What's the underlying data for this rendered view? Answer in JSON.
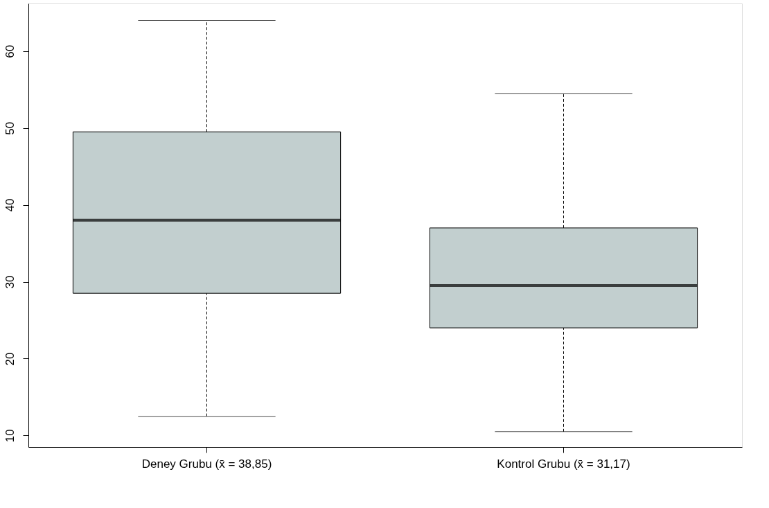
{
  "chart_data": {
    "type": "box",
    "categories": [
      "Deney Grubu (x̄ = 38,85)",
      "Kontrol Grubu (x̄ = 31,17)"
    ],
    "series": [
      {
        "color": "#c2cfcf",
        "boxes": [
          {
            "low": 12.5,
            "q1": 28.5,
            "median": 38,
            "q3": 49.5,
            "high": 64
          },
          {
            "low": 10.5,
            "q1": 24,
            "median": 29.5,
            "q3": 37,
            "high": 54.5
          }
        ]
      }
    ],
    "ylim": [
      8.5,
      66.2
    ],
    "yticks": [
      10,
      20,
      30,
      40,
      50,
      60
    ]
  }
}
